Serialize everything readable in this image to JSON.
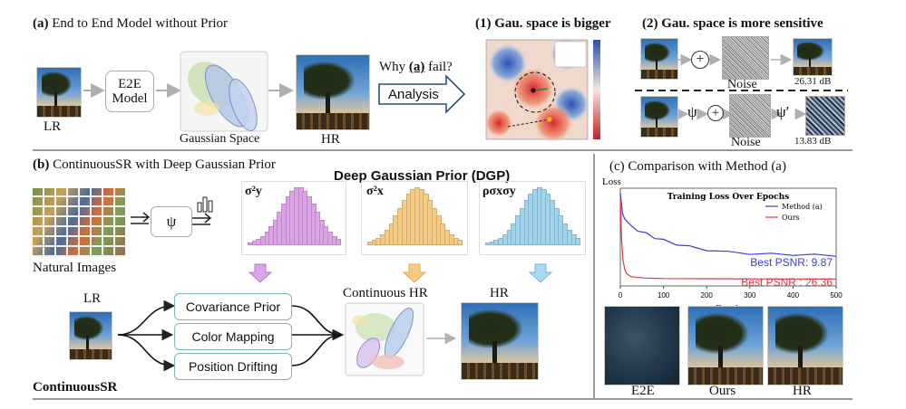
{
  "section_a": {
    "label": "(a)",
    "title": "End to End Model without Prior",
    "lr": "LR",
    "e2e_model": "E2E\nModel",
    "gaussian_space": "Gaussian Space",
    "hr": "HR",
    "why_prefix": "Why ",
    "why_a": "(a)",
    "why_suffix": " fail?",
    "analysis": "Analysis"
  },
  "panel_1": {
    "title": "(1) Gau. space is bigger"
  },
  "panel_2": {
    "title": "(2) Gau. space is more sensitive",
    "plus": "+",
    "noise_label": "Noise",
    "psnr_top": "26.31 dB",
    "psi": "ψ",
    "psi_prime": "ψ′",
    "psnr_bottom": "13.83 dB"
  },
  "section_b": {
    "label": "(b)",
    "title": "ContinuousSR with Deep Gaussian Prior",
    "natural_images": "Natural Images",
    "psi": "ψ",
    "dgp_title": "Deep Gaussian Prior (DGP)",
    "hist1_label": "σ²y",
    "hist2_label": "σ²x",
    "hist3_label": "ρσxσy",
    "lr": "LR",
    "box_cov": "Covariance Prior",
    "box_color": "Color Mapping",
    "box_pos": "Position Drifting",
    "continuous_hr": "Continuous HR",
    "hr": "HR",
    "footer": "ContinuousSR"
  },
  "section_c": {
    "label": "(c)",
    "title": "Comparison with Method (a)",
    "e2e": "E2E",
    "ours": "Ours",
    "hr": "HR"
  },
  "colors": {
    "method_a": "#3b3bd6",
    "ours": "#e0363e",
    "hist1": "#dca3e6",
    "hist2": "#f6cc85",
    "hist3": "#9fd4ec",
    "box_border": "#7fb6b8"
  },
  "chart_data": {
    "type": "line",
    "title": "Training Loss Over Epochs",
    "xlabel": "Epoch",
    "ylabel": "Loss",
    "xlim": [
      0,
      500
    ],
    "x_ticks": [
      0,
      100,
      200,
      300,
      400,
      500
    ],
    "series": [
      {
        "name": "Method (a)",
        "color": "#3b3bd6",
        "x": [
          0,
          5,
          10,
          20,
          40,
          60,
          80,
          100,
          130,
          160,
          200,
          250,
          300,
          350,
          400,
          450,
          500
        ],
        "y": [
          1.0,
          0.78,
          0.72,
          0.66,
          0.6,
          0.56,
          0.52,
          0.49,
          0.45,
          0.42,
          0.39,
          0.36,
          0.35,
          0.34,
          0.34,
          0.33,
          0.33
        ]
      },
      {
        "name": "Ours",
        "color": "#e0363e",
        "x": [
          0,
          3,
          6,
          10,
          15,
          25,
          40,
          60,
          100,
          200,
          300,
          400,
          500
        ],
        "y": [
          0.95,
          0.5,
          0.28,
          0.18,
          0.13,
          0.1,
          0.09,
          0.085,
          0.08,
          0.078,
          0.076,
          0.075,
          0.075
        ]
      }
    ],
    "annotations": [
      "Best PSNR: 9.87",
      "Best PSNR : 26.36"
    ],
    "legend_position": "top-right"
  }
}
